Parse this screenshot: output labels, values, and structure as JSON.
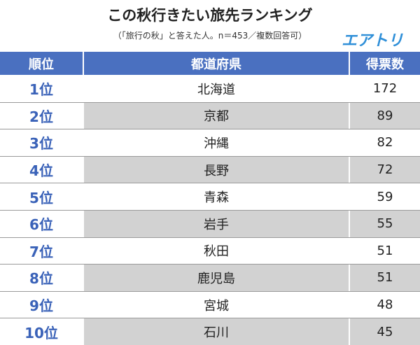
{
  "header": {
    "title": "この秋行きたい旅先ランキング",
    "subtitle": "（「旅行の秋」と答えた人。n＝453／複数回答可）",
    "logo": "エアトリ"
  },
  "table": {
    "columns": [
      "順位",
      "都道府県",
      "得票数"
    ],
    "rows": [
      [
        "1位",
        "北海道",
        172
      ],
      [
        "2位",
        "京都",
        89
      ],
      [
        "3位",
        "沖縄",
        82
      ],
      [
        "4位",
        "長野",
        72
      ],
      [
        "5位",
        "青森",
        59
      ],
      [
        "6位",
        "岩手",
        55
      ],
      [
        "7位",
        "秋田",
        51
      ],
      [
        "8位",
        "鹿児島",
        51
      ],
      [
        "9位",
        "宮城",
        48
      ],
      [
        "10位",
        "石川",
        45
      ]
    ]
  }
}
